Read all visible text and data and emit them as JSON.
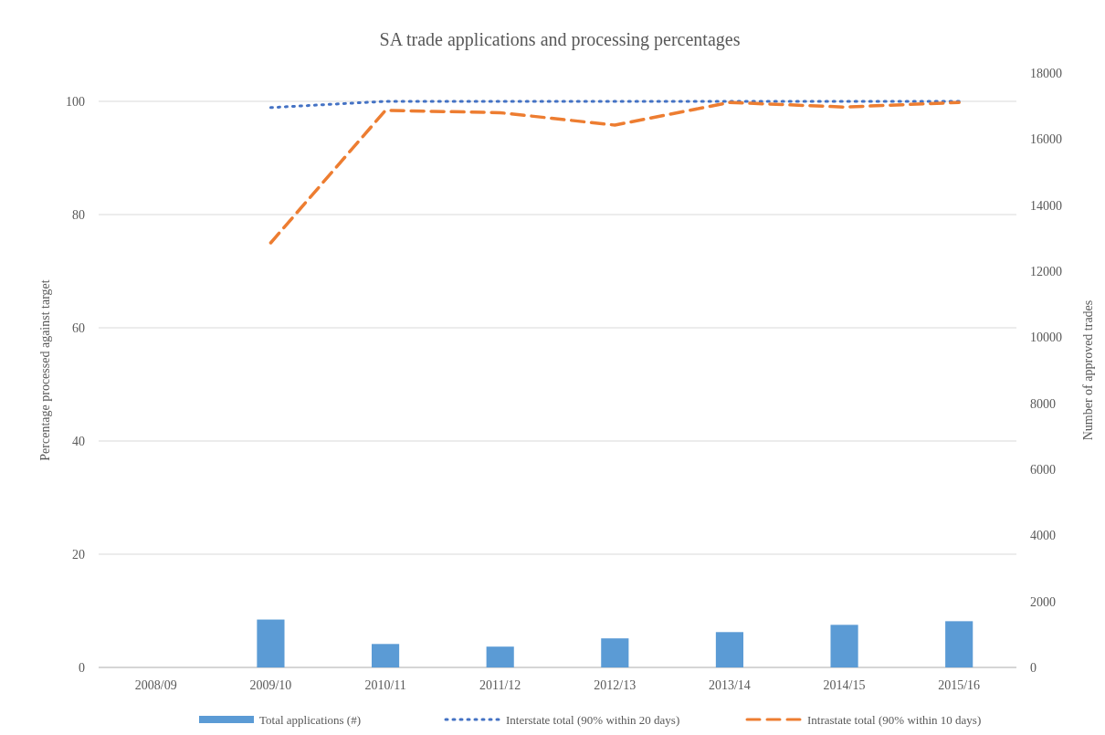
{
  "chart_data": {
    "type": "bar",
    "title": "SA trade applications and processing percentages",
    "ylabel": "Percentage processed against target",
    "y2label": "Number of approved trades",
    "categories": [
      "2008/09",
      "2009/10",
      "2010/11",
      "2011/12",
      "2012/13",
      "2013/14",
      "2014/15",
      "2015/16"
    ],
    "series": [
      {
        "name": "Total applications (#)",
        "axis": "y2",
        "color": "#5b9bd5",
        "values": [
          null,
          1450,
          710,
          630,
          880,
          1070,
          1290,
          1400
        ]
      },
      {
        "name": "Interstate total (90% within 20 days)",
        "type": "line",
        "line_style": "dotted",
        "color": "#4472c4",
        "values": [
          null,
          98.9,
          100,
          100,
          100,
          100,
          100,
          100
        ]
      },
      {
        "name": "Intrastate total (90% within 10 days)",
        "type": "line",
        "line_style": "dashed",
        "color": "#ed7d31",
        "values": [
          null,
          75,
          98.4,
          98,
          95.8,
          99.8,
          99,
          99.8
        ]
      }
    ],
    "ylim": [
      0,
      100
    ],
    "yticks": [
      0,
      20,
      40,
      60,
      80,
      100
    ],
    "y2lim": [
      0,
      18000
    ],
    "y2ticks": [
      0,
      2000,
      4000,
      6000,
      8000,
      10000,
      12000,
      14000,
      16000,
      18000
    ],
    "grid": "y",
    "legend": "bottom"
  }
}
